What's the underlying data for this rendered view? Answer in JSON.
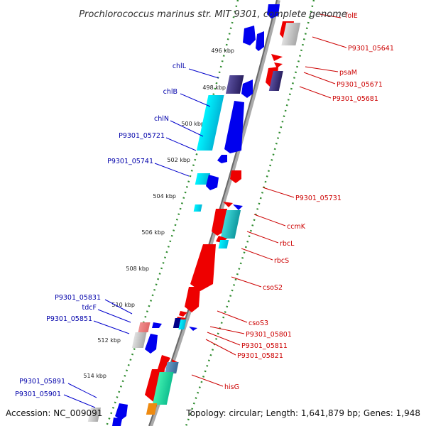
{
  "title": "Prochlorococcus marinus str. MIT 9301, complete genome",
  "accession": "Accession: NC_009091",
  "topology": "Topology: circular; Length: 1,641,879 bp; Genes: 1,948",
  "colors": {
    "forward": "#0000ee",
    "reverse": "#ee0000",
    "light_blue": "#00dcee",
    "dark_navy": "#3a3080",
    "grey": "#b8b8b8",
    "green": "#20e0a0",
    "orange": "#ee8a10",
    "teal": "#20c0c0",
    "label_left": "#0000aa",
    "label_right": "#cc0000",
    "ticks": "#228b22"
  },
  "ticks": [
    {
      "label": "496 kbp"
    },
    {
      "label": "498 kbp"
    },
    {
      "label": "500 kbp"
    },
    {
      "label": "502 kbp"
    },
    {
      "label": "504 kbp"
    },
    {
      "label": "506 kbp"
    },
    {
      "label": "508 kbp"
    },
    {
      "label": "510 kbp"
    },
    {
      "label": "512 kbp"
    },
    {
      "label": "514 kbp"
    }
  ],
  "left_labels": [
    {
      "text": "chlL"
    },
    {
      "text": "chlB"
    },
    {
      "text": "chlN"
    },
    {
      "text": "P9301_05721"
    },
    {
      "text": "P9301_05741"
    },
    {
      "text": "P9301_05831"
    },
    {
      "text": "tdcF"
    },
    {
      "text": "P9301_05851"
    },
    {
      "text": "P9301_05891"
    },
    {
      "text": "P9301_05901"
    }
  ],
  "right_labels": [
    {
      "text": "folE"
    },
    {
      "text": "P9301_05641"
    },
    {
      "text": "psaM"
    },
    {
      "text": "P9301_05671"
    },
    {
      "text": "P9301_05681"
    },
    {
      "text": "P9301_05731"
    },
    {
      "text": "ccmK"
    },
    {
      "text": "rbcL"
    },
    {
      "text": "rbcS"
    },
    {
      "text": "csoS2"
    },
    {
      "text": "csoS3"
    },
    {
      "text": "P9301_05801"
    },
    {
      "text": "P9301_05811"
    },
    {
      "text": "P9301_05821"
    },
    {
      "text": "hisG"
    }
  ]
}
